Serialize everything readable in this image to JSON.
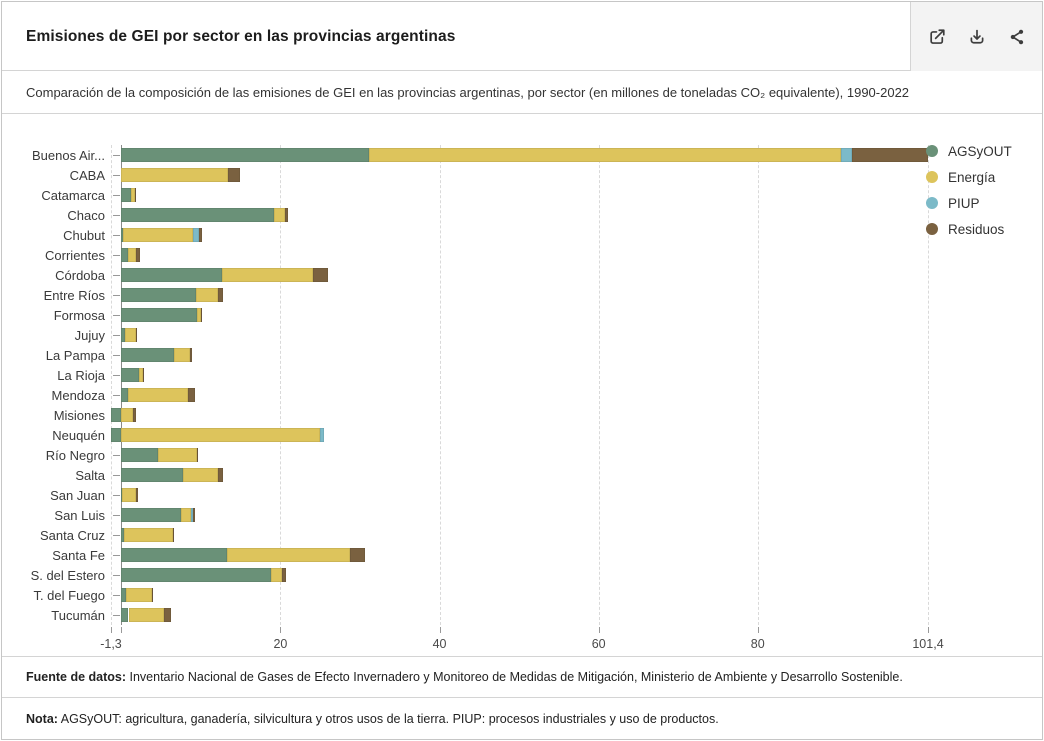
{
  "header": {
    "title": "Emisiones de GEI por sector en las provincias argentinas",
    "icons": [
      "external-link-icon",
      "download-icon",
      "share-icon"
    ]
  },
  "subtitle": {
    "text": "Comparación de la composición de las emisiones de GEI en las provincias argentinas, por sector (en millones de toneladas CO₂ equivalente), 1990-2022"
  },
  "chart_data": {
    "type": "bar",
    "orientation": "horizontal",
    "stacked": true,
    "unit": "millones de toneladas CO₂ equivalente",
    "grid": "dashed-vertical",
    "legend_position": "right-top",
    "xlim": [
      -1.3,
      101.4
    ],
    "x_ticks": [
      {
        "value": -1.3,
        "label": "-1,3"
      },
      {
        "value": 20,
        "label": "20"
      },
      {
        "value": 40,
        "label": "40"
      },
      {
        "value": 60,
        "label": "60"
      },
      {
        "value": 80,
        "label": "80"
      },
      {
        "value": 101.4,
        "label": "101,4"
      }
    ],
    "categories": [
      "Buenos Air...",
      "CABA",
      "Catamarca",
      "Chaco",
      "Chubut",
      "Corrientes",
      "Córdoba",
      "Entre Ríos",
      "Formosa",
      "Jujuy",
      "La Pampa",
      "La Rioja",
      "Mendoza",
      "Misiones",
      "Neuquén",
      "Río Negro",
      "Salta",
      "San Juan",
      "San Luis",
      "Santa Cruz",
      "Santa Fe",
      "S. del Estero",
      "T. del Fuego",
      "Tucumán"
    ],
    "series": [
      {
        "name": "AGSyOUT",
        "color": "#6A9178",
        "values": [
          31.1,
          0,
          1.2,
          19.2,
          0.2,
          0.8,
          12.6,
          9.4,
          9.5,
          0.5,
          6.6,
          2.2,
          0.8,
          -1.3,
          -1.3,
          4.6,
          7.7,
          0.1,
          7.5,
          0.3,
          13.3,
          18.8,
          0.6,
          0.9
        ]
      },
      {
        "name": "Energía",
        "color": "#DDC45C",
        "values": [
          59.4,
          13.4,
          0.5,
          1.4,
          8.8,
          1.1,
          11.5,
          2.8,
          0.55,
          1.3,
          2.0,
          0.5,
          7.6,
          1.5,
          25.0,
          4.9,
          4.5,
          1.7,
          1.3,
          6.2,
          15.4,
          1.35,
          3.2,
          4.5
        ]
      },
      {
        "name": "PIUP",
        "color": "#7CBAC8",
        "values": [
          1.4,
          0,
          0,
          0,
          0.8,
          0,
          0,
          0,
          0,
          0,
          0,
          0,
          0,
          0,
          0.5,
          0,
          0,
          0,
          0.2,
          0,
          0,
          0,
          0,
          0
        ]
      },
      {
        "name": "Residuos",
        "color": "#7A6140",
        "values": [
          9.5,
          1.5,
          0.2,
          0.4,
          0.3,
          0.5,
          1.9,
          0.6,
          0.15,
          0.2,
          0.3,
          0.1,
          0.9,
          0.4,
          0,
          0.2,
          0.6,
          0.3,
          0.2,
          0.1,
          1.9,
          0.55,
          0.1,
          0.8
        ]
      }
    ]
  },
  "footer": {
    "source_label": "Fuente de datos:",
    "source_text": " Inventario Nacional de Gases de Efecto Invernadero y Monitoreo de Medidas de Mitigación, Ministerio de Ambiente y Desarrollo Sostenible.",
    "note_label": "Nota:",
    "note_text": " AGSyOUT: agricultura, ganadería, silvicultura y otros usos de la tierra. PIUP: procesos industriales y uso de productos."
  }
}
